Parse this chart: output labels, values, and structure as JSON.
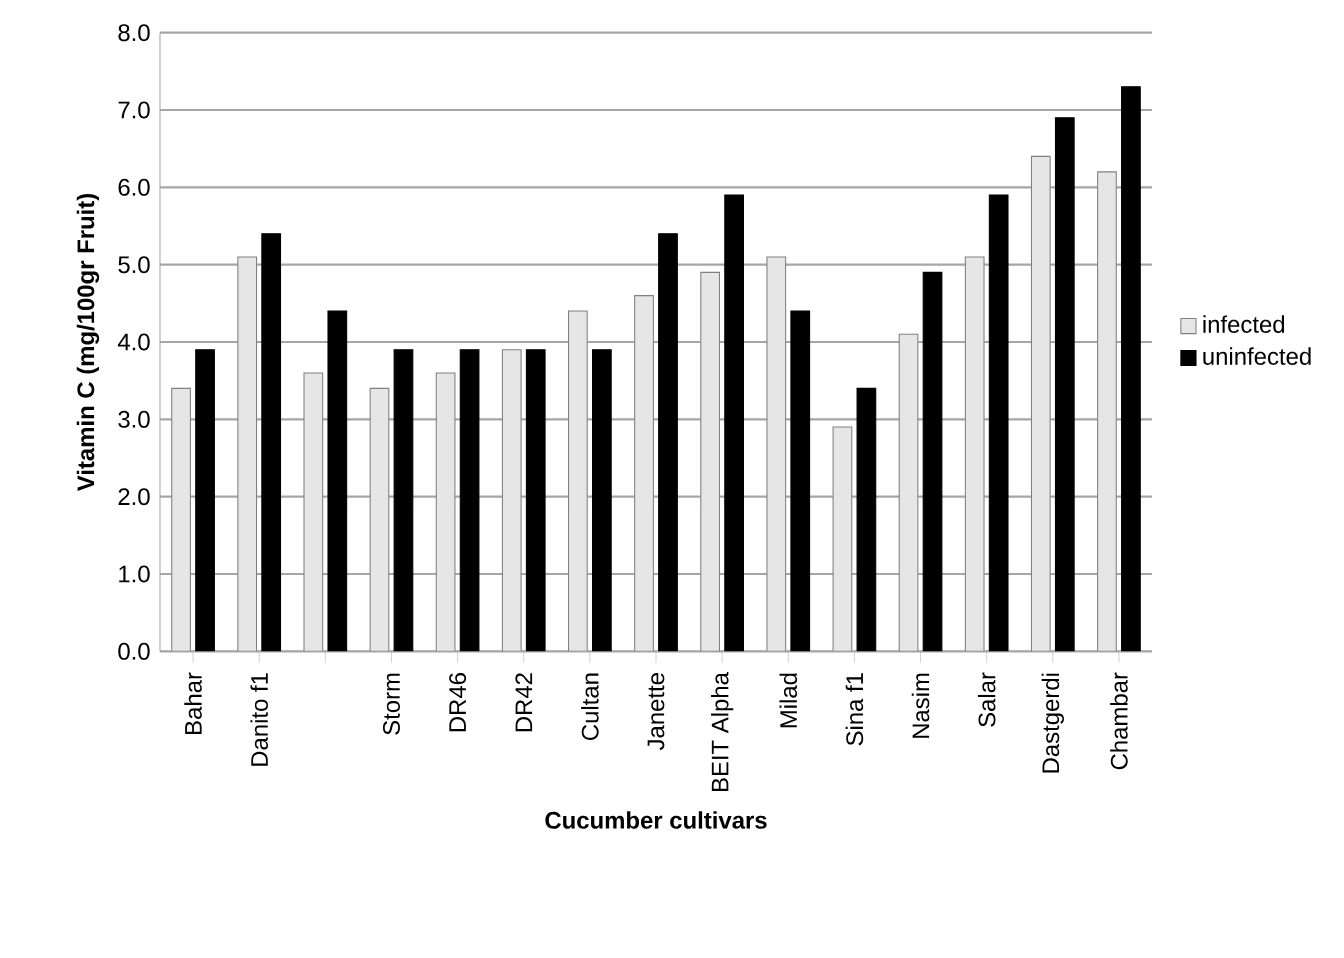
{
  "chart_data": {
    "type": "bar",
    "xlabel": "Cucumber cultivars",
    "ylabel": "Vitamin C (mg/100gr Fruit)",
    "categories": [
      "Bahar",
      "Danito f1",
      null,
      "Storm",
      "DR46",
      "DR42",
      "Cultan",
      "Janette",
      "BEIT Alpha",
      "Milad",
      "Sina f1",
      "Nasim",
      "Salar",
      "Dastgerdi",
      "Chambar"
    ],
    "series": [
      {
        "name": "infected",
        "color": "#e6e6e6",
        "values": [
          3.4,
          5.1,
          3.6,
          3.4,
          3.6,
          3.9,
          4.4,
          4.6,
          4.9,
          5.1,
          2.9,
          4.1,
          5.1,
          6.4,
          6.2
        ]
      },
      {
        "name": "uninfected",
        "color": "#000000",
        "values": [
          3.9,
          5.4,
          4.4,
          3.9,
          3.9,
          3.9,
          3.9,
          5.4,
          5.9,
          4.4,
          3.4,
          4.9,
          5.9,
          6.9,
          7.3
        ]
      }
    ],
    "ylim": [
      0,
      8
    ],
    "yticks": [
      {
        "value": 0,
        "label": "0.0"
      },
      {
        "value": 1,
        "label": "1.0"
      },
      {
        "value": 2,
        "label": "2.0"
      },
      {
        "value": 3,
        "label": "3.0"
      },
      {
        "value": 4,
        "label": "4.0"
      },
      {
        "value": 5,
        "label": "5.0"
      },
      {
        "value": 6,
        "label": "6.0"
      },
      {
        "value": 7,
        "label": "7.0"
      },
      {
        "value": 8,
        "label": "8.0"
      }
    ],
    "grid": "y",
    "legend": "right"
  }
}
